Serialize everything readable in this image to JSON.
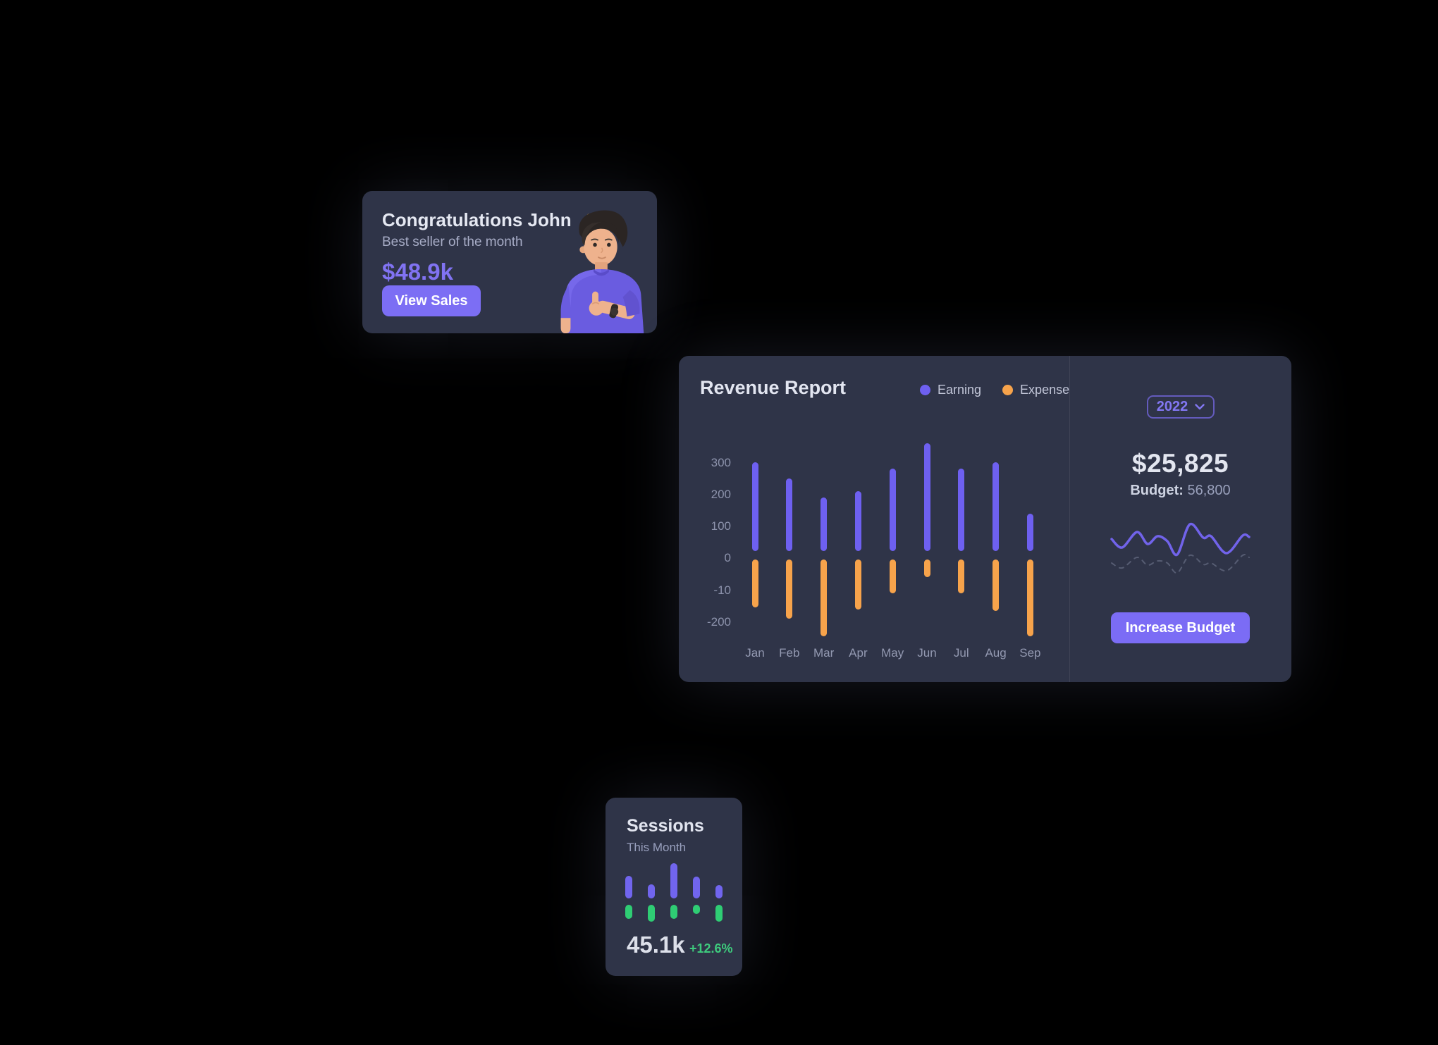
{
  "congrats_card": {
    "title": "Congratulations John",
    "title_icon": "party-popper-icon",
    "subtitle": "Best seller of the month",
    "amount": "$48.9k",
    "button_label": "View Sales"
  },
  "revenue_card": {
    "title": "Revenue Report",
    "legend": [
      {
        "label": "Earning",
        "color": "#6e60f0"
      },
      {
        "label": "Expense",
        "color": "#f7a34b"
      }
    ],
    "year_selector": "2022",
    "total": "$25,825",
    "budget_label": "Budget:",
    "budget_value": "56,800",
    "button_label": "Increase Budget"
  },
  "sessions_card": {
    "title": "Sessions",
    "subtitle": "This Month",
    "total": "45.1k",
    "delta": "+12.6%"
  },
  "colors": {
    "card_background": "#2f3448",
    "accent_purple": "#7c6ef4",
    "bar_purple": "#6e60f0",
    "bar_orange": "#f7a34b",
    "bar_green": "#2fcd74",
    "delta_green": "#3ecb7d",
    "page_background": "#000000"
  },
  "chart_data": [
    {
      "id": "revenue-report",
      "type": "bar",
      "title": "Revenue Report",
      "categories": [
        "Jan",
        "Feb",
        "Mar",
        "Apr",
        "May",
        "Jun",
        "Jul",
        "Aug",
        "Sep"
      ],
      "series": [
        {
          "name": "Earning",
          "color": "#6e60f0",
          "values": [
            300,
            250,
            190,
            210,
            280,
            360,
            280,
            300,
            140
          ]
        },
        {
          "name": "Expense",
          "color": "#f7a34b",
          "values": [
            -155,
            -190,
            -245,
            -160,
            -110,
            -60,
            -110,
            -165,
            -245
          ]
        }
      ],
      "y_ticks": [
        "300",
        "200",
        "100",
        "0",
        "-10",
        "-200"
      ],
      "ylim": [
        -260,
        380
      ],
      "grid": false,
      "legend_position": "top-right"
    },
    {
      "id": "budget-sparkline",
      "type": "line",
      "series": [
        {
          "name": "current",
          "style": "solid",
          "color": "#7163ea",
          "points": [
            [
              4,
              32
            ],
            [
              19,
              44
            ],
            [
              40,
              22
            ],
            [
              55,
              39
            ],
            [
              69,
              28
            ],
            [
              83,
              35
            ],
            [
              97,
              54
            ],
            [
              115,
              11
            ],
            [
              134,
              30
            ],
            [
              145,
              28
            ],
            [
              167,
              52
            ],
            [
              190,
              27
            ],
            [
              199,
              29
            ]
          ]
        },
        {
          "name": "previous",
          "style": "dashed",
          "color": "#565c72",
          "points": [
            [
              4,
              66
            ],
            [
              19,
              73
            ],
            [
              40,
              58
            ],
            [
              55,
              69
            ],
            [
              69,
              63
            ],
            [
              83,
              66
            ],
            [
              97,
              80
            ],
            [
              115,
              55
            ],
            [
              134,
              68
            ],
            [
              145,
              66
            ],
            [
              167,
              77
            ],
            [
              190,
              55
            ],
            [
              199,
              58
            ]
          ]
        }
      ]
    },
    {
      "id": "sessions",
      "type": "bar",
      "series": [
        {
          "name": "sessions-top",
          "color": "#7165ee",
          "values": [
            32,
            20,
            50,
            31,
            19
          ]
        },
        {
          "name": "sessions-bottom",
          "color": "#2fcd74",
          "values": [
            20,
            24,
            20,
            13,
            24
          ]
        }
      ]
    }
  ]
}
